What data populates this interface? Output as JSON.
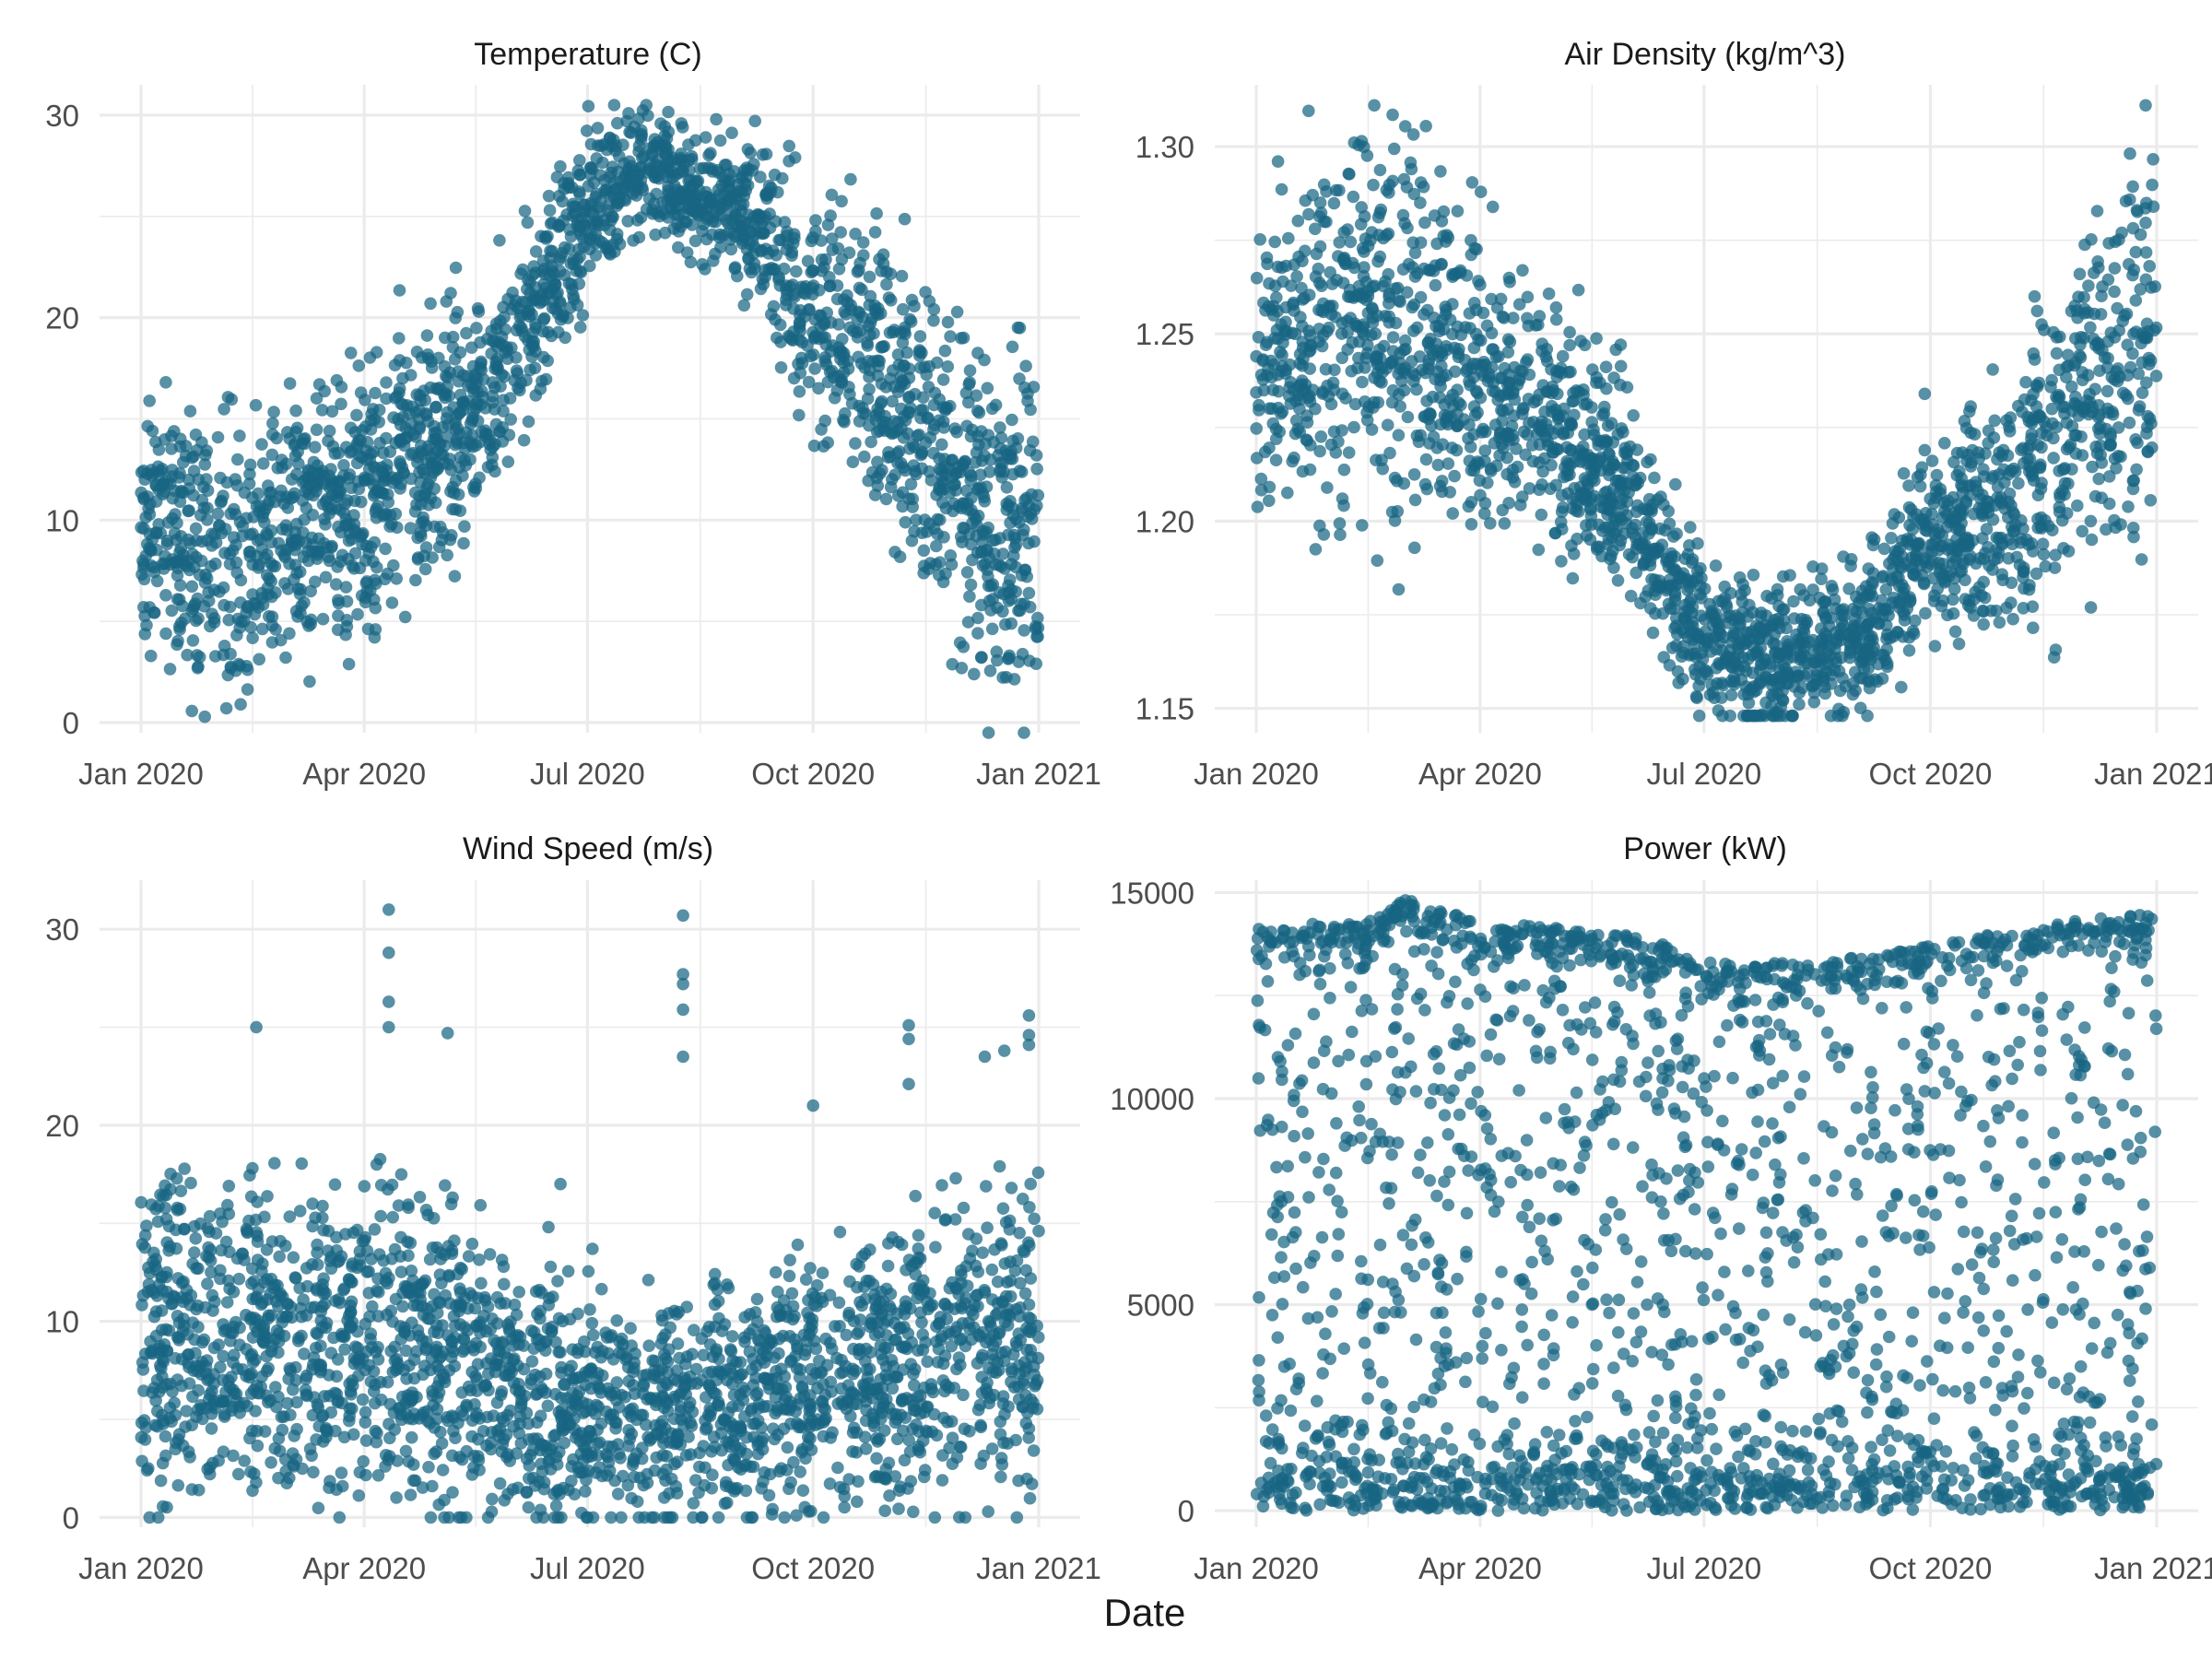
{
  "x_axis_title": "Date",
  "point_color": "#176582",
  "chart_data": [
    {
      "type": "scatter",
      "title": "Temperature (C)",
      "xlabel": "Date",
      "ylabel": "",
      "x_range": [
        "2020-01-01",
        "2021-01-01"
      ],
      "ylim": [
        -0.5,
        31.5
      ],
      "y_ticks": [
        0,
        10,
        20,
        30
      ],
      "y_tick_labels": [
        "0",
        "10",
        "20",
        "30"
      ],
      "x_ticks": [
        "2020-01-01",
        "2020-04-01",
        "2020-07-01",
        "2020-10-01",
        "2021-01-01"
      ],
      "x_tick_labels": [
        "Jan 2020",
        "Apr 2020",
        "Jul 2020",
        "Oct 2020",
        "Jan 2021"
      ],
      "grid": true,
      "series_profile": {
        "base": [
          [
            0,
            10
          ],
          [
            15,
            9
          ],
          [
            30,
            8
          ],
          [
            45,
            8
          ],
          [
            60,
            9
          ],
          [
            75,
            10.5
          ],
          [
            90,
            11
          ],
          [
            105,
            12.5
          ],
          [
            120,
            14
          ],
          [
            135,
            15.5
          ],
          [
            150,
            18
          ],
          [
            165,
            21
          ],
          [
            180,
            24.5
          ],
          [
            195,
            27
          ],
          [
            210,
            27.5
          ],
          [
            225,
            26
          ],
          [
            240,
            25.5
          ],
          [
            255,
            24
          ],
          [
            270,
            20.5
          ],
          [
            285,
            20
          ],
          [
            300,
            18
          ],
          [
            315,
            15
          ],
          [
            330,
            13
          ],
          [
            345,
            10
          ],
          [
            366,
            9
          ]
        ],
        "spread": [
          [
            0,
            2.5
          ],
          [
            30,
            4
          ],
          [
            60,
            3
          ],
          [
            120,
            3
          ],
          [
            180,
            2
          ],
          [
            210,
            1.5
          ],
          [
            240,
            1.5
          ],
          [
            270,
            2.5
          ],
          [
            300,
            3.5
          ],
          [
            330,
            4
          ],
          [
            366,
            4.5
          ]
        ],
        "max": 30.5,
        "min": -0.5
      },
      "annotated_extremes": {
        "max": 30.5,
        "min": -0.5
      }
    },
    {
      "type": "scatter",
      "title": "Air Density (kg/m^3)",
      "xlabel": "Date",
      "ylabel": "",
      "x_range": [
        "2020-01-01",
        "2021-01-01"
      ],
      "ylim": [
        1.1435,
        1.3165
      ],
      "y_ticks": [
        1.15,
        1.2,
        1.25,
        1.3
      ],
      "y_tick_labels": [
        "1.15",
        "1.20",
        "1.25",
        "1.30"
      ],
      "x_ticks": [
        "2020-01-01",
        "2020-04-01",
        "2020-07-01",
        "2020-10-01",
        "2021-01-01"
      ],
      "x_tick_labels": [
        "Jan 2020",
        "Apr 2020",
        "Jul 2020",
        "Oct 2020",
        "Jan 2021"
      ],
      "grid": true,
      "series_profile": {
        "base": [
          [
            0,
            1.245
          ],
          [
            20,
            1.245
          ],
          [
            40,
            1.255
          ],
          [
            60,
            1.25
          ],
          [
            90,
            1.24
          ],
          [
            120,
            1.225
          ],
          [
            150,
            1.21
          ],
          [
            165,
            1.19
          ],
          [
            180,
            1.17
          ],
          [
            195,
            1.165
          ],
          [
            210,
            1.163
          ],
          [
            240,
            1.168
          ],
          [
            255,
            1.175
          ],
          [
            270,
            1.195
          ],
          [
            300,
            1.2
          ],
          [
            320,
            1.215
          ],
          [
            340,
            1.235
          ],
          [
            366,
            1.25
          ]
        ],
        "spread": [
          [
            0,
            0.02
          ],
          [
            60,
            0.025
          ],
          [
            120,
            0.015
          ],
          [
            180,
            0.01
          ],
          [
            240,
            0.01
          ],
          [
            300,
            0.015
          ],
          [
            330,
            0.025
          ],
          [
            366,
            0.03
          ]
        ],
        "max": 1.311,
        "min": 1.148
      },
      "annotated_extremes": {
        "max": 1.311,
        "min": 1.148
      }
    },
    {
      "type": "scatter",
      "title": "Wind Speed (m/s)",
      "xlabel": "Date",
      "ylabel": "",
      "x_range": [
        "2020-01-01",
        "2021-01-01"
      ],
      "ylim": [
        -0.5,
        32.5
      ],
      "y_ticks": [
        0,
        10,
        20,
        30
      ],
      "y_tick_labels": [
        "0",
        "10",
        "20",
        "30"
      ],
      "x_ticks": [
        "2020-01-01",
        "2020-04-01",
        "2020-07-01",
        "2020-10-01",
        "2021-01-01"
      ],
      "x_tick_labels": [
        "Jan 2020",
        "Apr 2020",
        "Jul 2020",
        "Oct 2020",
        "Jan 2021"
      ],
      "grid": true,
      "series_profile": {
        "base": [
          [
            0,
            9
          ],
          [
            90,
            9
          ],
          [
            120,
            9
          ],
          [
            165,
            6
          ],
          [
            210,
            5
          ],
          [
            250,
            6
          ],
          [
            270,
            7
          ],
          [
            300,
            7
          ],
          [
            330,
            9
          ],
          [
            366,
            9
          ]
        ],
        "spread": [
          [
            0,
            4
          ],
          [
            120,
            4
          ],
          [
            180,
            3
          ],
          [
            270,
            3
          ],
          [
            330,
            4
          ],
          [
            366,
            4
          ]
        ],
        "max": 31,
        "min": 0
      },
      "outliers": [
        {
          "date": "2020-04-11",
          "value": 31
        },
        {
          "date": "2020-04-11",
          "value": 28.8
        },
        {
          "date": "2020-04-11",
          "value": 26.3
        },
        {
          "date": "2020-04-11",
          "value": 25
        },
        {
          "date": "2020-02-17",
          "value": 25
        },
        {
          "date": "2020-05-05",
          "value": 24.7
        },
        {
          "date": "2020-08-09",
          "value": 30.7
        },
        {
          "date": "2020-08-09",
          "value": 27.7
        },
        {
          "date": "2020-08-09",
          "value": 27.2
        },
        {
          "date": "2020-08-09",
          "value": 25.9
        },
        {
          "date": "2020-08-09",
          "value": 23.5
        },
        {
          "date": "2020-11-09",
          "value": 25.1
        },
        {
          "date": "2020-11-09",
          "value": 24.4
        },
        {
          "date": "2020-11-09",
          "value": 22.1
        },
        {
          "date": "2020-12-10",
          "value": 23.5
        },
        {
          "date": "2020-12-18",
          "value": 23.8
        },
        {
          "date": "2020-12-28",
          "value": 25.6
        },
        {
          "date": "2020-12-28",
          "value": 24.6
        },
        {
          "date": "2020-12-28",
          "value": 24.1
        },
        {
          "date": "2020-10-01",
          "value": 21
        },
        {
          "date": "2020-06-20",
          "value": 17
        }
      ]
    },
    {
      "type": "scatter",
      "title": "Power (kW)",
      "xlabel": "Date",
      "ylabel": "",
      "x_range": [
        "2020-01-01",
        "2021-01-01"
      ],
      "ylim": [
        -400,
        15300
      ],
      "y_ticks": [
        0,
        5000,
        10000,
        15000
      ],
      "y_tick_labels": [
        "0",
        "5000",
        "10000",
        "15000"
      ],
      "x_ticks": [
        "2020-01-01",
        "2020-04-01",
        "2020-07-01",
        "2020-10-01",
        "2021-01-01"
      ],
      "x_tick_labels": [
        "Jan 2020",
        "Apr 2020",
        "Jul 2020",
        "Oct 2020",
        "Jan 2021"
      ],
      "grid": true,
      "series_profile": {
        "cap_band": [
          [
            0,
            14200
          ],
          [
            45,
            14300
          ],
          [
            60,
            14900
          ],
          [
            90,
            14300
          ],
          [
            150,
            14000
          ],
          [
            165,
            13800
          ],
          [
            180,
            13300
          ],
          [
            225,
            13300
          ],
          [
            255,
            13500
          ],
          [
            300,
            14000
          ],
          [
            330,
            14300
          ],
          [
            366,
            14500
          ]
        ],
        "floor": 0,
        "max": 15000,
        "min": 0
      },
      "annotated_extremes": {
        "max": 15000,
        "min": 0
      }
    }
  ]
}
